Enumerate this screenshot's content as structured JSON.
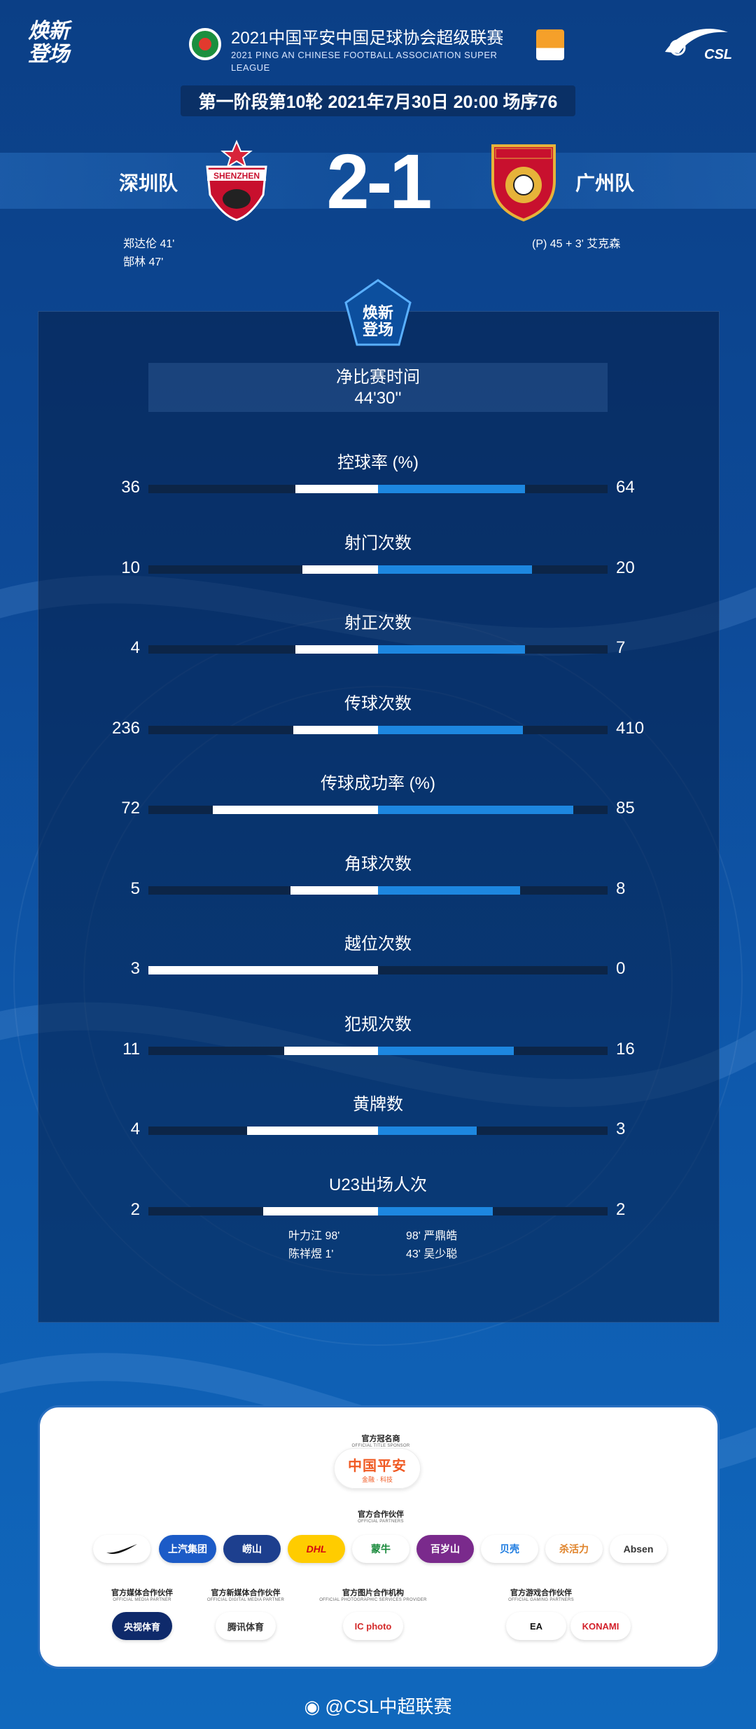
{
  "brand": {
    "line1": "焕新",
    "line2": "登场"
  },
  "league": {
    "title_zh": "2021中国平安中国足球协会超级联赛",
    "title_en": "2021 PING AN CHINESE FOOTBALL ASSOCIATION SUPER LEAGUE",
    "logo_text": "CSL"
  },
  "match_info": "第一阶段第10轮  2021年7月30日 20:00 场序76",
  "home": {
    "name": "深圳队",
    "crest_text": "SHENZHEN",
    "score": 2,
    "scorers": [
      "郑达伦  41'",
      "郜林  47'"
    ]
  },
  "away": {
    "name": "广州队",
    "score": 1,
    "scorers": [
      "(P)  45 + 3'  艾克森"
    ]
  },
  "score_display": "2-1",
  "emblem": {
    "line1": "焕新",
    "line2": "登场"
  },
  "duration": {
    "label": "净比赛时间",
    "value": "44'30''"
  },
  "stats": [
    {
      "label": "控球率 (%)",
      "home": "36",
      "away": "64",
      "home_share": 0.36,
      "away_share": 0.64
    },
    {
      "label": "射门次数",
      "home": "10",
      "away": "20",
      "home_share": 0.33,
      "away_share": 0.67
    },
    {
      "label": "射正次数",
      "home": "4",
      "away": "7",
      "home_share": 0.36,
      "away_share": 0.64
    },
    {
      "label": "传球次数",
      "home": "236",
      "away": "410",
      "home_share": 0.37,
      "away_share": 0.63
    },
    {
      "label": "传球成功率 (%)",
      "home": "72",
      "away": "85",
      "home_share": 0.72,
      "away_share": 0.85
    },
    {
      "label": "角球次数",
      "home": "5",
      "away": "8",
      "home_share": 0.38,
      "away_share": 0.62
    },
    {
      "label": "越位次数",
      "home": "3",
      "away": "0",
      "home_share": 1.0,
      "away_share": 0.0
    },
    {
      "label": "犯规次数",
      "home": "11",
      "away": "16",
      "home_share": 0.41,
      "away_share": 0.59
    },
    {
      "label": "黄牌数",
      "home": "4",
      "away": "3",
      "home_share": 0.57,
      "away_share": 0.43
    },
    {
      "label": "U23出场人次",
      "home": "2",
      "away": "2",
      "home_share": 0.5,
      "away_share": 0.5
    }
  ],
  "u23_players": {
    "home": [
      "叶力江   98'",
      "陈祥煜   1'"
    ],
    "away": [
      "98'   严鼎皓",
      "43'   吴少聪"
    ]
  },
  "sponsors": {
    "title_sponsor": {
      "zh": "官方冠名商",
      "en": "OFFICIAL TITLE SPONSOR",
      "name": "中国平安",
      "sub": "金融 · 科技"
    },
    "partners_title": {
      "zh": "官方合作伙伴",
      "en": "OFFICIAL PARTNERS"
    },
    "partners": [
      "Nike",
      "上汽集团",
      "崂山",
      "DHL",
      "蒙牛",
      "百岁山",
      "贝壳",
      "杀活力",
      "Absen"
    ],
    "media": {
      "zh": "官方媒体合作伙伴",
      "en": "OFFICIAL MEDIA PARTNER",
      "name": "央视体育"
    },
    "digital_media": {
      "zh": "官方新媒体合作伙伴",
      "en": "OFFICIAL DIGITAL MEDIA PARTNER",
      "name": "腾讯体育"
    },
    "photo": {
      "zh": "官方图片合作机构",
      "en": "OFFICIAL PHOTOGRAPHIC SERVICES PROVIDER",
      "name": "IC photo"
    },
    "gaming": {
      "zh": "官方游戏合作伙伴",
      "en": "OFFICIAL GAMING PARTNERS",
      "names": [
        "EA",
        "KONAMI"
      ]
    }
  },
  "footer": "@CSL中超联赛",
  "colors": {
    "home_bar": "#ffffff",
    "away_bar": "#1d87e0",
    "track": "#0c2547",
    "accent": "#f05a23"
  }
}
